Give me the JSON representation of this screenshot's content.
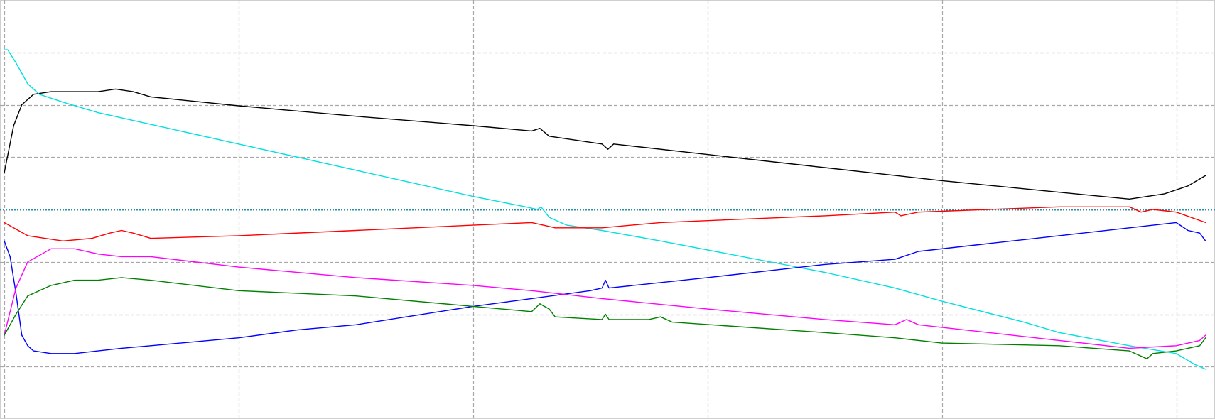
{
  "chart_data": {
    "type": "line",
    "title": "",
    "xlabel": "",
    "ylabel": "",
    "xlim": [
      0,
      1030
    ],
    "ylim": [
      -4,
      4
    ],
    "grid": true,
    "legend": "none",
    "zero_line": true,
    "x_grid": [
      0,
      200,
      400,
      600,
      800,
      1000
    ],
    "y_grid": [
      -3,
      -2,
      -1,
      0,
      1,
      2,
      3
    ],
    "series": [
      {
        "color": "#000000",
        "points": [
          [
            0,
            0.7
          ],
          [
            8,
            1.6
          ],
          [
            15,
            2.0
          ],
          [
            25,
            2.2
          ],
          [
            40,
            2.25
          ],
          [
            60,
            2.25
          ],
          [
            80,
            2.25
          ],
          [
            95,
            2.3
          ],
          [
            110,
            2.25
          ],
          [
            125,
            2.15
          ],
          [
            200,
            1.98
          ],
          [
            300,
            1.78
          ],
          [
            400,
            1.6
          ],
          [
            450,
            1.5
          ],
          [
            457,
            1.55
          ],
          [
            465,
            1.4
          ],
          [
            510,
            1.25
          ],
          [
            515,
            1.15
          ],
          [
            520,
            1.25
          ],
          [
            600,
            1.05
          ],
          [
            700,
            0.8
          ],
          [
            800,
            0.55
          ],
          [
            900,
            0.33
          ],
          [
            960,
            0.2
          ],
          [
            990,
            0.3
          ],
          [
            1010,
            0.45
          ],
          [
            1025,
            0.65
          ]
        ]
      },
      {
        "color": "#00e0e0",
        "points": [
          [
            0,
            3.05
          ],
          [
            3,
            3.05
          ],
          [
            10,
            2.8
          ],
          [
            20,
            2.4
          ],
          [
            30,
            2.2
          ],
          [
            50,
            2.05
          ],
          [
            80,
            1.85
          ],
          [
            100,
            1.75
          ],
          [
            200,
            1.25
          ],
          [
            300,
            0.75
          ],
          [
            400,
            0.25
          ],
          [
            445,
            0.05
          ],
          [
            455,
            0.0
          ],
          [
            458,
            0.05
          ],
          [
            465,
            -0.15
          ],
          [
            480,
            -0.3
          ],
          [
            510,
            -0.4
          ],
          [
            560,
            -0.6
          ],
          [
            700,
            -1.2
          ],
          [
            760,
            -1.5
          ],
          [
            800,
            -1.75
          ],
          [
            870,
            -2.15
          ],
          [
            900,
            -2.35
          ],
          [
            960,
            -2.6
          ],
          [
            1000,
            -2.75
          ],
          [
            1015,
            -2.95
          ],
          [
            1025,
            -3.05
          ]
        ]
      },
      {
        "color": "#ff0000",
        "points": [
          [
            0,
            -0.25
          ],
          [
            20,
            -0.5
          ],
          [
            50,
            -0.6
          ],
          [
            75,
            -0.55
          ],
          [
            90,
            -0.45
          ],
          [
            100,
            -0.4
          ],
          [
            110,
            -0.45
          ],
          [
            125,
            -0.55
          ],
          [
            200,
            -0.5
          ],
          [
            300,
            -0.4
          ],
          [
            400,
            -0.3
          ],
          [
            450,
            -0.25
          ],
          [
            460,
            -0.3
          ],
          [
            470,
            -0.35
          ],
          [
            510,
            -0.35
          ],
          [
            560,
            -0.25
          ],
          [
            700,
            -0.12
          ],
          [
            760,
            -0.05
          ],
          [
            765,
            -0.12
          ],
          [
            780,
            -0.05
          ],
          [
            900,
            0.05
          ],
          [
            960,
            0.05
          ],
          [
            970,
            -0.05
          ],
          [
            980,
            0.0
          ],
          [
            1000,
            -0.05
          ],
          [
            1025,
            -0.25
          ]
        ]
      },
      {
        "color": "#0000ff",
        "points": [
          [
            0,
            -0.6
          ],
          [
            5,
            -0.9
          ],
          [
            10,
            -1.6
          ],
          [
            15,
            -2.4
          ],
          [
            20,
            -2.6
          ],
          [
            25,
            -2.7
          ],
          [
            40,
            -2.75
          ],
          [
            60,
            -2.75
          ],
          [
            80,
            -2.7
          ],
          [
            100,
            -2.65
          ],
          [
            125,
            -2.6
          ],
          [
            200,
            -2.45
          ],
          [
            250,
            -2.3
          ],
          [
            300,
            -2.2
          ],
          [
            400,
            -1.85
          ],
          [
            450,
            -1.7
          ],
          [
            500,
            -1.55
          ],
          [
            510,
            -1.5
          ],
          [
            513,
            -1.35
          ],
          [
            516,
            -1.5
          ],
          [
            600,
            -1.3
          ],
          [
            700,
            -1.05
          ],
          [
            760,
            -0.95
          ],
          [
            780,
            -0.8
          ],
          [
            900,
            -0.5
          ],
          [
            960,
            -0.35
          ],
          [
            1000,
            -0.25
          ],
          [
            1010,
            -0.4
          ],
          [
            1020,
            -0.45
          ],
          [
            1025,
            -0.6
          ]
        ]
      },
      {
        "color": "#ff00ff",
        "points": [
          [
            0,
            -2.4
          ],
          [
            10,
            -1.5
          ],
          [
            20,
            -1.0
          ],
          [
            40,
            -0.75
          ],
          [
            60,
            -0.75
          ],
          [
            80,
            -0.85
          ],
          [
            100,
            -0.9
          ],
          [
            125,
            -0.9
          ],
          [
            200,
            -1.1
          ],
          [
            300,
            -1.3
          ],
          [
            400,
            -1.45
          ],
          [
            450,
            -1.55
          ],
          [
            510,
            -1.7
          ],
          [
            600,
            -1.9
          ],
          [
            700,
            -2.1
          ],
          [
            760,
            -2.2
          ],
          [
            770,
            -2.1
          ],
          [
            780,
            -2.2
          ],
          [
            900,
            -2.5
          ],
          [
            960,
            -2.65
          ],
          [
            1000,
            -2.6
          ],
          [
            1020,
            -2.5
          ],
          [
            1025,
            -2.4
          ]
        ]
      },
      {
        "color": "#008000",
        "points": [
          [
            0,
            -2.4
          ],
          [
            10,
            -2.0
          ],
          [
            20,
            -1.65
          ],
          [
            40,
            -1.45
          ],
          [
            60,
            -1.35
          ],
          [
            80,
            -1.35
          ],
          [
            100,
            -1.3
          ],
          [
            125,
            -1.35
          ],
          [
            200,
            -1.55
          ],
          [
            300,
            -1.65
          ],
          [
            400,
            -1.85
          ],
          [
            450,
            -1.95
          ],
          [
            457,
            -1.8
          ],
          [
            465,
            -1.9
          ],
          [
            470,
            -2.05
          ],
          [
            510,
            -2.1
          ],
          [
            513,
            -2.0
          ],
          [
            516,
            -2.1
          ],
          [
            550,
            -2.1
          ],
          [
            560,
            -2.05
          ],
          [
            570,
            -2.15
          ],
          [
            700,
            -2.35
          ],
          [
            760,
            -2.45
          ],
          [
            800,
            -2.55
          ],
          [
            900,
            -2.6
          ],
          [
            960,
            -2.7
          ],
          [
            975,
            -2.85
          ],
          [
            980,
            -2.75
          ],
          [
            1000,
            -2.7
          ],
          [
            1020,
            -2.6
          ],
          [
            1025,
            -2.45
          ]
        ]
      }
    ]
  }
}
